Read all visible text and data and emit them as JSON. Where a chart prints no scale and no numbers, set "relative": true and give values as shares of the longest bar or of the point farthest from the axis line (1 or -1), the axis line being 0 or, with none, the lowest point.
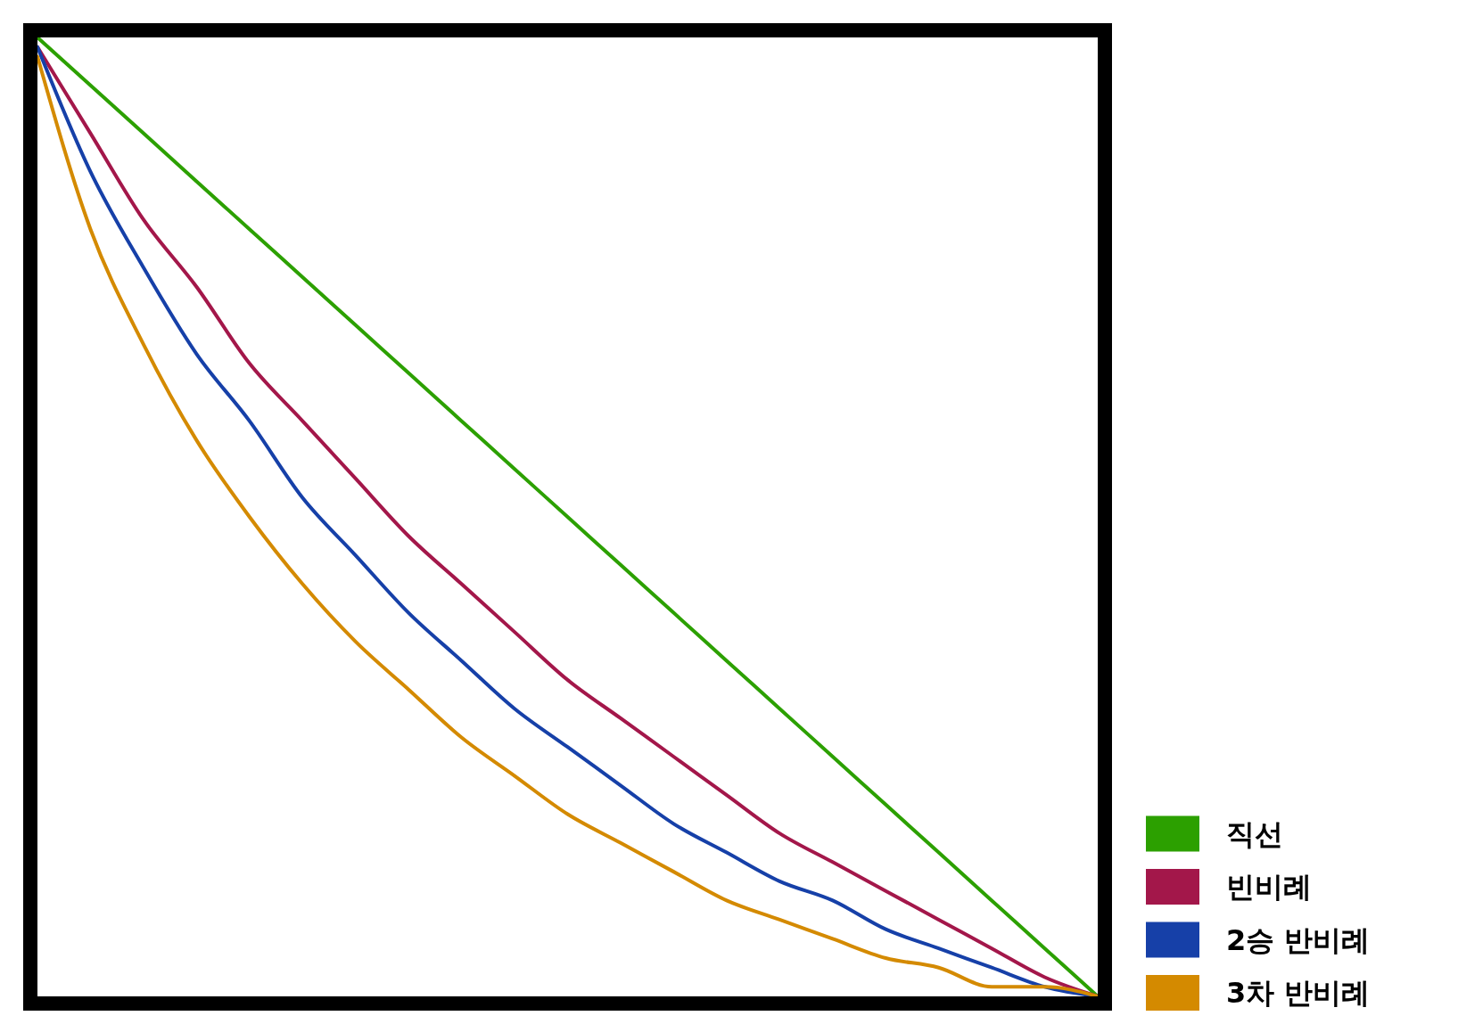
{
  "chart_data": {
    "type": "line",
    "relative": true,
    "legend": "bottom right",
    "categories": [
      null,
      null,
      null,
      null,
      null,
      null,
      null,
      null,
      null,
      null,
      null,
      null,
      null,
      null,
      null,
      null,
      null,
      null,
      null,
      null,
      null
    ],
    "series": [
      {
        "name": "직선",
        "color": "#2ca000",
        "values": [
          1,
          0.95,
          0.9,
          0.85,
          0.8,
          0.75,
          0.7,
          0.65,
          0.6,
          0.55,
          0.5,
          0.45,
          0.4,
          0.35,
          0.3,
          0.25,
          0.2,
          0.15,
          0.1,
          0.05,
          0
        ]
      },
      {
        "name": "빈비례",
        "color": "#a3174a",
        "values": [
          0.99,
          0.9,
          0.81,
          0.74,
          0.66,
          0.6,
          0.54,
          0.48,
          0.43,
          0.38,
          0.33,
          0.29,
          0.25,
          0.21,
          0.17,
          0.14,
          0.11,
          0.08,
          0.05,
          0.02,
          0
        ]
      },
      {
        "name": "2승 반비례",
        "color": "#1640a8",
        "values": [
          0.99,
          0.86,
          0.76,
          0.67,
          0.6,
          0.52,
          0.46,
          0.4,
          0.35,
          0.3,
          0.26,
          0.22,
          0.18,
          0.15,
          0.12,
          0.1,
          0.07,
          0.05,
          0.03,
          0.01,
          0
        ]
      },
      {
        "name": "3차 반비례",
        "color": "#d48a00",
        "values": [
          0.98,
          0.8,
          0.68,
          0.58,
          0.5,
          0.43,
          0.37,
          0.32,
          0.27,
          0.23,
          0.19,
          0.16,
          0.13,
          0.1,
          0.08,
          0.06,
          0.04,
          0.03,
          0.01,
          0.01,
          0
        ]
      }
    ]
  }
}
